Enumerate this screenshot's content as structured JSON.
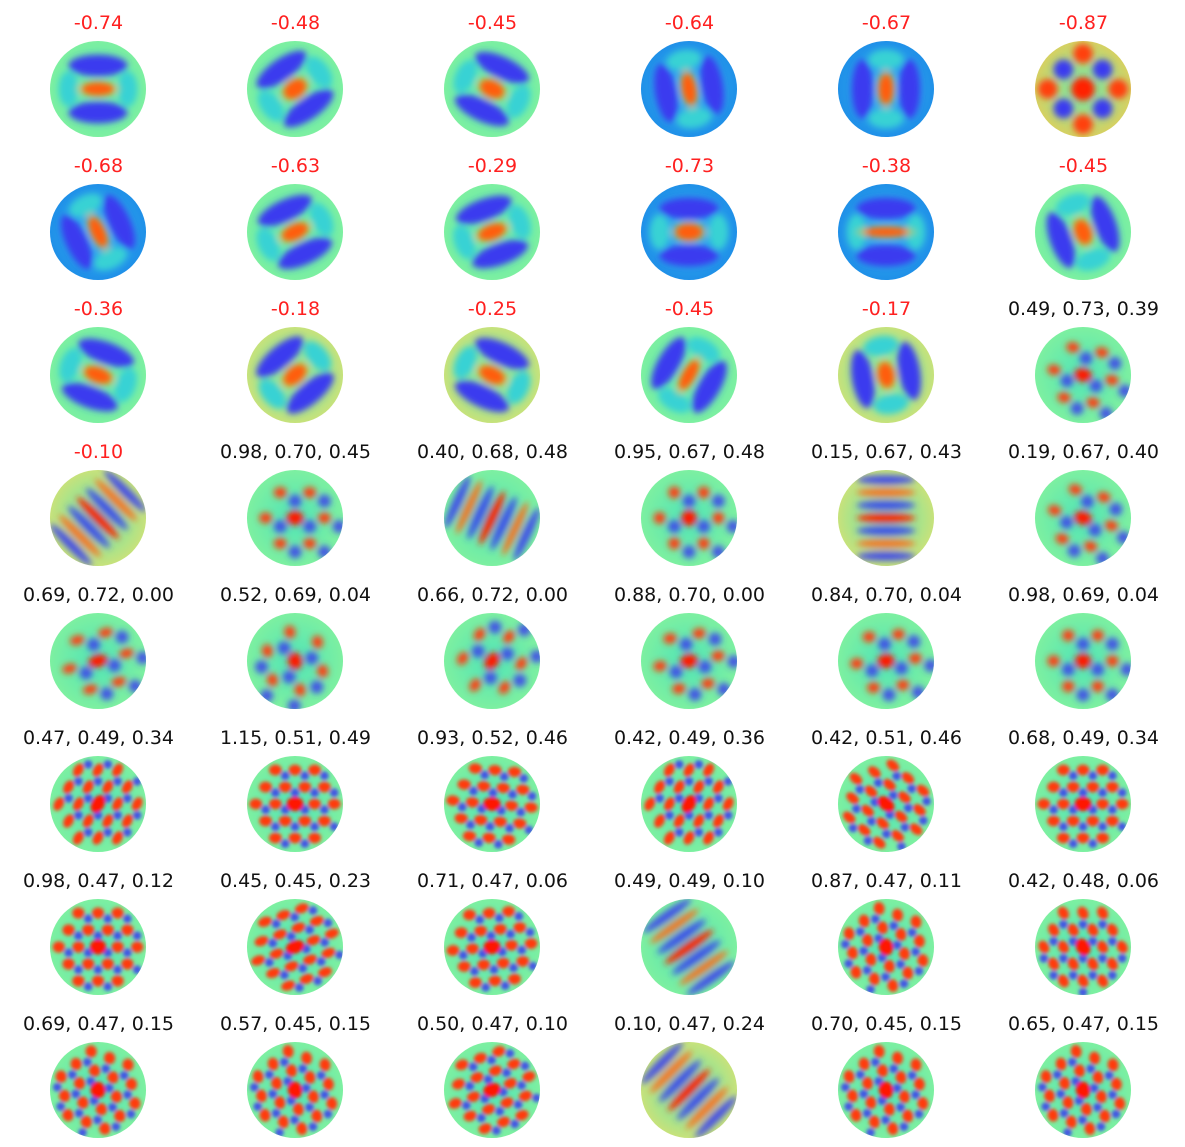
{
  "colors": {
    "negative_label": "#ff2020",
    "positive_label": "#111111"
  },
  "panels": [
    {
      "label": "-0.74",
      "negative": true,
      "pattern": "blob",
      "angle": 0,
      "elong": 2.4,
      "bg": "green"
    },
    {
      "label": "-0.48",
      "negative": true,
      "pattern": "blob",
      "angle": -35,
      "elong": 1.4,
      "bg": "green"
    },
    {
      "label": "-0.45",
      "negative": true,
      "pattern": "blob",
      "angle": 25,
      "elong": 1.5,
      "bg": "green"
    },
    {
      "label": "-0.64",
      "negative": true,
      "pattern": "blob",
      "angle": 80,
      "elong": 2.2,
      "bg": "blue"
    },
    {
      "label": "-0.67",
      "negative": true,
      "pattern": "blob",
      "angle": 90,
      "elong": 2.0,
      "bg": "blue"
    },
    {
      "label": "-0.87",
      "negative": true,
      "pattern": "checker",
      "angle": 0,
      "elong": 1.0,
      "bg": "mixed"
    },
    {
      "label": "-0.68",
      "negative": true,
      "pattern": "blob",
      "angle": 65,
      "elong": 2.3,
      "bg": "blue"
    },
    {
      "label": "-0.63",
      "negative": true,
      "pattern": "blob",
      "angle": -25,
      "elong": 1.8,
      "bg": "green"
    },
    {
      "label": "-0.29",
      "negative": true,
      "pattern": "blob",
      "angle": -20,
      "elong": 1.9,
      "bg": "green"
    },
    {
      "label": "-0.73",
      "negative": true,
      "pattern": "blob",
      "angle": 0,
      "elong": 1.6,
      "bg": "blue"
    },
    {
      "label": "-0.38",
      "negative": true,
      "pattern": "blob",
      "angle": 0,
      "elong": 4.5,
      "bg": "blue"
    },
    {
      "label": "-0.45",
      "negative": true,
      "pattern": "blob",
      "angle": 70,
      "elong": 1.5,
      "bg": "green"
    },
    {
      "label": "-0.36",
      "negative": true,
      "pattern": "blob",
      "angle": 20,
      "elong": 1.8,
      "bg": "green"
    },
    {
      "label": "-0.18",
      "negative": true,
      "pattern": "blob",
      "angle": -40,
      "elong": 1.6,
      "bg": "warm"
    },
    {
      "label": "-0.25",
      "negative": true,
      "pattern": "blob",
      "angle": 25,
      "elong": 1.7,
      "bg": "warm"
    },
    {
      "label": "-0.45",
      "negative": true,
      "pattern": "blob",
      "angle": -60,
      "elong": 2.5,
      "bg": "green"
    },
    {
      "label": "-0.17",
      "negative": true,
      "pattern": "blob",
      "angle": 80,
      "elong": 1.5,
      "bg": "warm"
    },
    {
      "label": "0.49, 0.73, 0.39",
      "negative": false,
      "pattern": "hex",
      "angle": 10,
      "elong": 1.3,
      "bg": "green"
    },
    {
      "label": "-0.10",
      "negative": true,
      "pattern": "stripes",
      "angle": 45,
      "elong": 2.5,
      "bg": "warm"
    },
    {
      "label": "0.98, 0.70, 0.45",
      "negative": false,
      "pattern": "hex",
      "angle": 0,
      "elong": 1.2,
      "bg": "green"
    },
    {
      "label": "0.40, 0.68, 0.48",
      "negative": false,
      "pattern": "stripes",
      "angle": -65,
      "elong": 2.0,
      "bg": "green"
    },
    {
      "label": "0.95, 0.67, 0.48",
      "negative": false,
      "pattern": "hex",
      "angle": 0,
      "elong": 1.0,
      "bg": "green"
    },
    {
      "label": "0.15, 0.67, 0.43",
      "negative": false,
      "pattern": "stripes",
      "angle": 0,
      "elong": 2.2,
      "bg": "warm"
    },
    {
      "label": "0.19, 0.67, 0.40",
      "negative": false,
      "pattern": "hex",
      "angle": 15,
      "elong": 1.3,
      "bg": "green"
    },
    {
      "label": "0.69, 0.72, 0.00",
      "negative": false,
      "pattern": "hex",
      "angle": -15,
      "elong": 1.6,
      "bg": "green"
    },
    {
      "label": "0.52, 0.69, 0.04",
      "negative": false,
      "pattern": "hex",
      "angle": 80,
      "elong": 1.2,
      "bg": "green"
    },
    {
      "label": "0.66, 0.72, 0.00",
      "negative": false,
      "pattern": "hex",
      "angle": -55,
      "elong": 1.4,
      "bg": "green"
    },
    {
      "label": "0.88, 0.70, 0.00",
      "negative": false,
      "pattern": "hex",
      "angle": -10,
      "elong": 1.3,
      "bg": "green"
    },
    {
      "label": "0.84, 0.70, 0.04",
      "negative": false,
      "pattern": "hex",
      "angle": -5,
      "elong": 1.2,
      "bg": "green"
    },
    {
      "label": "0.98, 0.69, 0.04",
      "negative": false,
      "pattern": "hex",
      "angle": 0,
      "elong": 1.1,
      "bg": "green"
    },
    {
      "label": "0.47, 0.49, 0.34",
      "negative": false,
      "pattern": "fine",
      "angle": -60,
      "elong": 1.5,
      "bg": "green"
    },
    {
      "label": "1.15, 0.51, 0.49",
      "negative": false,
      "pattern": "fine",
      "angle": 0,
      "elong": 1.2,
      "bg": "green"
    },
    {
      "label": "0.93, 0.52, 0.46",
      "negative": false,
      "pattern": "fine",
      "angle": 5,
      "elong": 1.3,
      "bg": "green"
    },
    {
      "label": "0.42, 0.49, 0.36",
      "negative": false,
      "pattern": "fine",
      "angle": -60,
      "elong": 1.5,
      "bg": "green"
    },
    {
      "label": "0.42, 0.51, 0.46",
      "negative": false,
      "pattern": "fine",
      "angle": 40,
      "elong": 1.5,
      "bg": "green"
    },
    {
      "label": "0.68, 0.49, 0.34",
      "negative": false,
      "pattern": "fine",
      "angle": 0,
      "elong": 1.2,
      "bg": "green"
    },
    {
      "label": "0.98, 0.47, 0.12",
      "negative": false,
      "pattern": "fine",
      "angle": 0,
      "elong": 1.1,
      "bg": "green"
    },
    {
      "label": "0.45, 0.45, 0.23",
      "negative": false,
      "pattern": "fine",
      "angle": -20,
      "elong": 1.5,
      "bg": "green"
    },
    {
      "label": "0.71, 0.47, 0.06",
      "negative": false,
      "pattern": "fine",
      "angle": -5,
      "elong": 1.2,
      "bg": "green"
    },
    {
      "label": "0.49, 0.49, 0.10",
      "negative": false,
      "pattern": "stripes",
      "angle": -35,
      "elong": 2.4,
      "bg": "green"
    },
    {
      "label": "0.87, 0.47, 0.11",
      "negative": false,
      "pattern": "fine",
      "angle": 80,
      "elong": 1.2,
      "bg": "green"
    },
    {
      "label": "0.42, 0.48, 0.06",
      "negative": false,
      "pattern": "fine",
      "angle": 60,
      "elong": 1.3,
      "bg": "green"
    },
    {
      "label": "0.69, 0.47, 0.15",
      "negative": false,
      "pattern": "fine",
      "angle": 80,
      "elong": 1.1,
      "bg": "green"
    },
    {
      "label": "0.57, 0.45, 0.15",
      "negative": false,
      "pattern": "fine",
      "angle": 80,
      "elong": 1.2,
      "bg": "green"
    },
    {
      "label": "0.50, 0.47, 0.10",
      "negative": false,
      "pattern": "fine",
      "angle": -20,
      "elong": 1.3,
      "bg": "green"
    },
    {
      "label": "0.10, 0.47, 0.24",
      "negative": false,
      "pattern": "stripes",
      "angle": -45,
      "elong": 2.6,
      "bg": "warm"
    },
    {
      "label": "0.70, 0.45, 0.15",
      "negative": false,
      "pattern": "fine",
      "angle": 80,
      "elong": 1.2,
      "bg": "green"
    },
    {
      "label": "0.65, 0.47, 0.15",
      "negative": false,
      "pattern": "fine",
      "angle": 80,
      "elong": 1.2,
      "bg": "green"
    }
  ]
}
